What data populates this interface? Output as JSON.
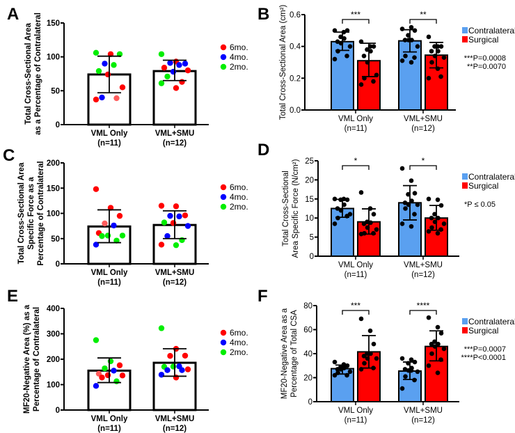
{
  "chart_data": [
    {
      "panel": "A",
      "type": "bar",
      "style": "single",
      "ylabel": [
        "Total Cross-Sectional Area",
        "as a Percentage of Contralateral"
      ],
      "ylim": [
        0,
        150
      ],
      "yticks": [
        0,
        50,
        100,
        150
      ],
      "categories": [
        [
          "VML Only",
          "(n=11)"
        ],
        [
          "VML+SMU",
          "(n=12)"
        ]
      ],
      "legend": [
        {
          "label": "6mo.",
          "color": "#ff0000"
        },
        {
          "label": "4mo.",
          "color": "#0000ff"
        },
        {
          "label": "2mo.",
          "color": "#00ee00"
        }
      ],
      "groups": [
        {
          "mean": 74,
          "err": [
            47,
            101
          ],
          "points": [
            [
              106,
              "g"
            ],
            [
              104,
              "r"
            ],
            [
              104,
              "g"
            ],
            [
              90,
              "b"
            ],
            [
              88,
              "g"
            ],
            [
              79,
              "g"
            ],
            [
              74,
              "r"
            ],
            [
              55,
              "r"
            ],
            [
              40,
              "b"
            ],
            [
              39,
              "l"
            ],
            [
              37,
              "r"
            ]
          ]
        },
        {
          "mean": 79,
          "err": [
            65,
            95
          ],
          "points": [
            [
              104,
              "g"
            ],
            [
              93,
              "r"
            ],
            [
              90,
              "b"
            ],
            [
              91,
              "b"
            ],
            [
              88,
              "b"
            ],
            [
              84,
              "r"
            ],
            [
              78,
              "b"
            ],
            [
              80,
              "r"
            ],
            [
              71,
              "g"
            ],
            [
              63,
              "r"
            ],
            [
              61,
              "g"
            ],
            [
              54,
              "r"
            ]
          ]
        }
      ]
    },
    {
      "panel": "B",
      "type": "bar",
      "style": "grouped",
      "ylabel": [
        "Total Cross-Sectional Area  (cm²)"
      ],
      "ylim": [
        0,
        0.6
      ],
      "yticks": [
        "0.0",
        "0.2",
        "0.4",
        "0.6"
      ],
      "categories": [
        [
          "VML Only",
          "(n=11)"
        ],
        [
          "VML+SMU",
          "(n=12)"
        ]
      ],
      "legend": [
        {
          "label": "Contralateral",
          "color": "#5aa0f0"
        },
        {
          "label": "Surgical",
          "color": "#ff0000"
        }
      ],
      "significance": [
        "***",
        "**"
      ],
      "pvalues": [
        "***P=0.0008",
        "**P=0.0070"
      ],
      "groups": [
        {
          "contralateral": {
            "mean": 0.43,
            "err": [
              0.375,
              0.49
            ],
            "points": [
              0.5,
              0.49,
              0.5,
              0.46,
              0.45,
              0.43,
              0.42,
              0.4,
              0.37,
              0.34,
              0.32
            ]
          },
          "surgical": {
            "mean": 0.31,
            "err": [
              0.21,
              0.42
            ],
            "points": [
              0.43,
              0.4,
              0.4,
              0.38,
              0.37,
              0.34,
              0.3,
              0.22,
              0.2,
              0.18,
              0.16
            ]
          }
        },
        {
          "contralateral": {
            "mean": 0.435,
            "err": [
              0.365,
              0.505
            ],
            "points": [
              0.51,
              0.52,
              0.5,
              0.47,
              0.44,
              0.44,
              0.44,
              0.4,
              0.34,
              0.33,
              0.31,
              0.3
            ]
          },
          "surgical": {
            "mean": 0.345,
            "err": [
              0.265,
              0.425
            ],
            "points": [
              0.46,
              0.4,
              0.4,
              0.4,
              0.37,
              0.37,
              0.34,
              0.33,
              0.3,
              0.21,
              0.2,
              0.26
            ]
          }
        }
      ]
    },
    {
      "panel": "C",
      "type": "bar",
      "style": "single",
      "ylabel": [
        "Total Cross-Sectional Area",
        "Specific Force as a",
        "Percentage of Contralateral"
      ],
      "ylim": [
        0,
        200
      ],
      "yticks": [
        0,
        50,
        100,
        150,
        200
      ],
      "categories": [
        [
          "VML Only",
          "(n=11)"
        ],
        [
          "VML+SMU",
          "(n=12)"
        ]
      ],
      "legend": [
        {
          "label": "6mo.",
          "color": "#ff0000"
        },
        {
          "label": "4mo.",
          "color": "#0000ff"
        },
        {
          "label": "2mo.",
          "color": "#00ee00"
        }
      ],
      "groups": [
        {
          "mean": 74,
          "err": [
            42,
            107
          ],
          "points": [
            [
              148,
              "r"
            ],
            [
              111,
              "r"
            ],
            [
              95,
              "r"
            ],
            [
              80,
              "l"
            ],
            [
              76,
              "b"
            ],
            [
              61,
              "r"
            ],
            [
              56,
              "g"
            ],
            [
              56,
              "g"
            ],
            [
              55,
              "g"
            ],
            [
              46,
              "g"
            ],
            [
              38,
              "b"
            ]
          ]
        },
        {
          "mean": 77,
          "err": [
            50,
            105
          ],
          "points": [
            [
              115,
              "r"
            ],
            [
              114,
              "r"
            ],
            [
              96,
              "r"
            ],
            [
              95,
              "b"
            ],
            [
              94,
              "b"
            ],
            [
              82,
              "g"
            ],
            [
              81,
              "r"
            ],
            [
              75,
              "b"
            ],
            [
              55,
              "b"
            ],
            [
              47,
              "g"
            ],
            [
              38,
              "r"
            ],
            [
              37,
              "g"
            ]
          ]
        }
      ]
    },
    {
      "panel": "D",
      "type": "bar",
      "style": "grouped",
      "ylabel": [
        "Total Cross-Sectional",
        "Area Specific Force  (N/cm²)"
      ],
      "ylim": [
        0,
        25
      ],
      "yticks": [
        0,
        5,
        10,
        15,
        20,
        25
      ],
      "categories": [
        [
          "VML Only",
          "(n=11)"
        ],
        [
          "VML+SMU",
          "(n=12)"
        ]
      ],
      "legend": [
        {
          "label": "Contralateral",
          "color": "#5aa0f0"
        },
        {
          "label": "Surgical",
          "color": "#ff0000"
        }
      ],
      "significance": [
        "*",
        "*"
      ],
      "pvalues": [
        "*P ≤ 0.05"
      ],
      "groups": [
        {
          "contralateral": {
            "mean": 12.5,
            "err": [
              10.2,
              14.9
            ],
            "points": [
              15,
              15,
              14.8,
              14.8,
              13.5,
              12.5,
              12,
              11,
              10,
              10.5,
              8.5
            ]
          },
          "surgical": {
            "mean": 9,
            "err": [
              5.8,
              12.4
            ],
            "points": [
              16.7,
              12.5,
              11,
              9,
              8.8,
              8.5,
              7.5,
              7,
              6,
              6,
              5.8
            ]
          }
        },
        {
          "contralateral": {
            "mean": 14,
            "err": [
              9.5,
              18.5
            ],
            "points": [
              23,
              19.8,
              16.5,
              16.2,
              14.5,
              14,
              13.5,
              13.5,
              12.5,
              11,
              8.5,
              7.8
            ]
          },
          "surgical": {
            "mean": 10,
            "err": [
              6.8,
              13.3
            ],
            "points": [
              15,
              14.8,
              13.3,
              11,
              10,
              10,
              9,
              8.5,
              7.5,
              7,
              6.5,
              6
            ]
          }
        }
      ]
    },
    {
      "panel": "E",
      "type": "bar",
      "style": "single",
      "ylabel": [
        "MF20-Negative Area (%) as a",
        "Percentage of Contralateral"
      ],
      "ylim": [
        0,
        400
      ],
      "yticks": [
        0,
        100,
        200,
        300,
        400
      ],
      "categories": [
        [
          "VML Only",
          "(n=11)"
        ],
        [
          "VML+SMU",
          "(n=12)"
        ]
      ],
      "legend": [
        {
          "label": "6mo.",
          "color": "#ff0000"
        },
        {
          "label": "4mo.",
          "color": "#0000ff"
        },
        {
          "label": "2mo.",
          "color": "#00ee00"
        }
      ],
      "groups": [
        {
          "mean": 155,
          "err": [
            108,
            205
          ],
          "points": [
            [
              275,
              "g"
            ],
            [
              192,
              "g"
            ],
            [
              176,
              "r"
            ],
            [
              164,
              "g"
            ],
            [
              155,
              "b"
            ],
            [
              143,
              "l"
            ],
            [
              137,
              "r"
            ],
            [
              136,
              "r"
            ],
            [
              128,
              "r"
            ],
            [
              113,
              "g"
            ],
            [
              95,
              "b"
            ]
          ]
        },
        {
          "mean": 186,
          "err": [
            133,
            241
          ],
          "points": [
            [
              322,
              "g"
            ],
            [
              241,
              "r"
            ],
            [
              214,
              "r"
            ],
            [
              213,
              "r"
            ],
            [
              172,
              "b"
            ],
            [
              170,
              "g"
            ],
            [
              171,
              "g"
            ],
            [
              160,
              "r"
            ],
            [
              157,
              "b"
            ],
            [
              157,
              "b"
            ],
            [
              139,
              "b"
            ],
            [
              128,
              "r"
            ]
          ]
        }
      ]
    },
    {
      "panel": "F",
      "type": "bar",
      "style": "grouped",
      "ylabel": [
        "MF20-Negative Area as a",
        "Percentage of Total CSA"
      ],
      "ylim": [
        0,
        80
      ],
      "yticks": [
        0,
        20,
        40,
        60,
        80
      ],
      "categories": [
        [
          "VML Only",
          "(n=11)"
        ],
        [
          "VML+SMU",
          "(n=12)"
        ]
      ],
      "legend": [
        {
          "label": "Contralateral",
          "color": "#5aa0f0"
        },
        {
          "label": "Surgical",
          "color": "#ff0000"
        }
      ],
      "significance": [
        "***",
        "****"
      ],
      "pvalues": [
        "***P=0.0007",
        "****P<0.0001"
      ],
      "groups": [
        {
          "contralateral": {
            "mean": 27.5,
            "err": [
              23,
              30.5
            ],
            "points": [
              33,
              31,
              30,
              29,
              28,
              27,
              27,
              25,
              24,
              22,
              22
            ]
          },
          "surgical": {
            "mean": 41.5,
            "err": [
              28,
              55
            ],
            "points": [
              69,
              59,
              48,
              40,
              40,
              38,
              36,
              36,
              32,
              28,
              27
            ]
          }
        },
        {
          "contralateral": {
            "mean": 25.5,
            "err": [
              18.5,
              33
            ],
            "points": [
              36,
              35,
              33,
              32,
              28,
              27,
              26,
              25,
              21,
              18,
              11,
              26
            ]
          },
          "surgical": {
            "mean": 46,
            "err": [
              34,
              59
            ],
            "points": [
              70,
              62,
              57,
              50,
              48,
              48,
              46,
              44,
              40,
              35,
              30,
              24
            ]
          }
        }
      ]
    }
  ],
  "dot_colors": {
    "r": "#ff0000",
    "b": "#0000ff",
    "g": "#00ee00",
    "l": "#ff5c5c"
  }
}
